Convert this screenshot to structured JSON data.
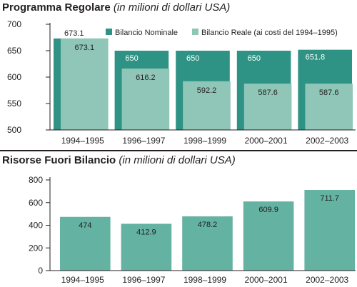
{
  "colors": {
    "nominal": "#2e9384",
    "reale": "#8fc6b8",
    "single": "#64b2a2",
    "axis": "#231f20",
    "text": "#231f20"
  },
  "chart_data": [
    {
      "type": "bar",
      "title": "Programma Regolare",
      "subtitle": "(in milioni di dollari USA)",
      "categories": [
        "1994–1995",
        "1996–1997",
        "1998–1999",
        "2000–2001",
        "2002–2003"
      ],
      "series": [
        {
          "name": "Bilancio Nominale",
          "values": [
            673.1,
            650,
            650,
            650,
            651.8
          ],
          "labels": [
            "673.1",
            "650",
            "650",
            "650",
            "651.8"
          ]
        },
        {
          "name": "Bilancio Reale (ai costi del  1994–1995)",
          "values": [
            673.1,
            616.2,
            592.2,
            587.6,
            587.6
          ],
          "labels": [
            "673.1",
            "616.2",
            "592.2",
            "587.6",
            "587.6"
          ]
        }
      ],
      "yticks": [
        "700",
        "650",
        "600",
        "550",
        "500"
      ],
      "ylim": [
        500,
        700
      ],
      "legend": "top",
      "grid": false
    },
    {
      "type": "bar",
      "title": "Risorse Fuori Bilancio",
      "subtitle": "(in milioni di dollari USA)",
      "categories": [
        "1994–1995",
        "1996–1997",
        "1998–1999",
        "2000–2001",
        "2002–2003"
      ],
      "series": [
        {
          "values": [
            474,
            412.9,
            478.2,
            609.9,
            711.7
          ],
          "labels": [
            "474",
            "412.9",
            "478.2",
            "609.9",
            "711.7"
          ]
        }
      ],
      "yticks": [
        "800",
        "600",
        "400",
        "200",
        "0"
      ],
      "ylim": [
        0,
        800
      ],
      "legend": "none",
      "grid": false
    }
  ]
}
